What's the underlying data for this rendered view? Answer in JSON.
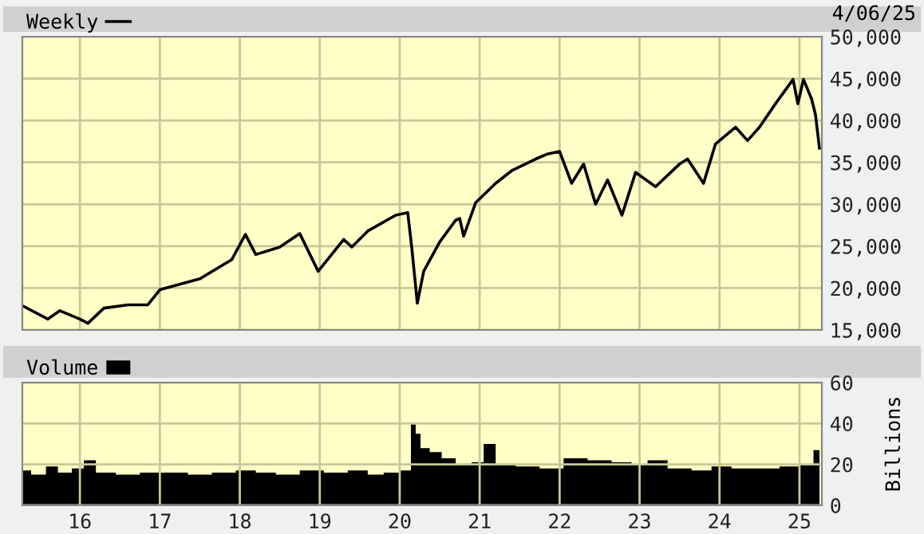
{
  "chart_data": [
    {
      "type": "line",
      "title": "4/06/25",
      "legend": "top left",
      "grid": true,
      "tick_labels": "y",
      "xlim": [
        2015.28,
        2025.28
      ],
      "xticks": [
        {
          "value": 2016,
          "label": null
        },
        {
          "value": 2017,
          "label": null
        },
        {
          "value": 2018,
          "label": null
        },
        {
          "value": 2019,
          "label": null
        },
        {
          "value": 2020,
          "label": null
        },
        {
          "value": 2021,
          "label": null
        },
        {
          "value": 2022,
          "label": null
        },
        {
          "value": 2023,
          "label": null
        },
        {
          "value": 2024,
          "label": null
        },
        {
          "value": 2025,
          "label": null
        }
      ],
      "ylim": [
        15000,
        50000
      ],
      "yticks": [
        {
          "value": 15000,
          "label": "15,000"
        },
        {
          "value": 20000,
          "label": "20,000"
        },
        {
          "value": 25000,
          "label": "25,000"
        },
        {
          "value": 30000,
          "label": "30,000"
        },
        {
          "value": 35000,
          "label": "35,000"
        },
        {
          "value": 40000,
          "label": "40,000"
        },
        {
          "value": 45000,
          "label": "45,000"
        },
        {
          "value": 50000,
          "label": "50,000"
        }
      ],
      "series": [
        {
          "name": "Weekly",
          "color": "#000000",
          "x": [
            2015.28,
            2015.6,
            2015.75,
            2016.0,
            2016.1,
            2016.3,
            2016.6,
            2016.85,
            2017.0,
            2017.5,
            2017.9,
            2018.07,
            2018.2,
            2018.5,
            2018.75,
            2018.98,
            2019.3,
            2019.4,
            2019.6,
            2019.95,
            2020.1,
            2020.15,
            2020.22,
            2020.3,
            2020.5,
            2020.7,
            2020.75,
            2020.8,
            2020.95,
            2021.2,
            2021.4,
            2021.7,
            2021.85,
            2022.0,
            2022.15,
            2022.3,
            2022.45,
            2022.6,
            2022.78,
            2022.95,
            2023.2,
            2023.5,
            2023.6,
            2023.8,
            2023.95,
            2024.2,
            2024.35,
            2024.5,
            2024.7,
            2024.92,
            2024.98,
            2025.05,
            2025.15,
            2025.2,
            2025.25
          ],
          "values": [
            17900,
            16300,
            17300,
            16300,
            15800,
            17600,
            18000,
            18000,
            19800,
            21100,
            23400,
            26400,
            24000,
            24900,
            26500,
            22000,
            25800,
            24900,
            26800,
            28700,
            29000,
            24900,
            18200,
            22000,
            25500,
            28100,
            28300,
            26200,
            30200,
            32500,
            34000,
            35400,
            36000,
            36300,
            32500,
            34800,
            30000,
            32900,
            28700,
            33800,
            32100,
            34800,
            35400,
            32500,
            37200,
            39200,
            37600,
            39200,
            42000,
            44900,
            42000,
            44900,
            42600,
            40700,
            36700
          ]
        }
      ]
    },
    {
      "type": "area",
      "legend": "top left",
      "grid": true,
      "ylabel": "Billions",
      "xlim": [
        2015.28,
        2025.28
      ],
      "xticks": [
        {
          "value": 2016,
          "label": "16"
        },
        {
          "value": 2017,
          "label": "17"
        },
        {
          "value": 2018,
          "label": "18"
        },
        {
          "value": 2019,
          "label": "19"
        },
        {
          "value": 2020,
          "label": "20"
        },
        {
          "value": 2021,
          "label": "21"
        },
        {
          "value": 2022,
          "label": "22"
        },
        {
          "value": 2023,
          "label": "23"
        },
        {
          "value": 2024,
          "label": "24"
        },
        {
          "value": 2025,
          "label": "25"
        }
      ],
      "ylim": [
        0,
        60
      ],
      "yticks": [
        0,
        20,
        40,
        60
      ],
      "series": [
        {
          "name": "Volume",
          "color": "#000000",
          "x": [
            2015.28,
            2015.5,
            2015.65,
            2015.8,
            2016.0,
            2016.1,
            2016.3,
            2016.6,
            2016.9,
            2017.2,
            2017.5,
            2017.8,
            2018.1,
            2018.3,
            2018.6,
            2018.9,
            2019.2,
            2019.5,
            2019.7,
            2019.9,
            2020.1,
            2020.18,
            2020.22,
            2020.3,
            2020.45,
            2020.6,
            2020.8,
            2021.0,
            2021.1,
            2021.3,
            2021.6,
            2021.9,
            2022.2,
            2022.5,
            2022.8,
            2023.0,
            2023.2,
            2023.5,
            2023.8,
            2024.0,
            2024.3,
            2024.6,
            2024.9,
            2025.1,
            2025.25
          ],
          "values": [
            17,
            15,
            19,
            16,
            18,
            22,
            16,
            15,
            16,
            16,
            15,
            16,
            17,
            16,
            15,
            17,
            16,
            17,
            15,
            16,
            17,
            40,
            35,
            28,
            26,
            23,
            20,
            21,
            30,
            20,
            19,
            18,
            23,
            22,
            21,
            20,
            22,
            18,
            17,
            19,
            18,
            18,
            19,
            20,
            27
          ]
        }
      ]
    }
  ]
}
